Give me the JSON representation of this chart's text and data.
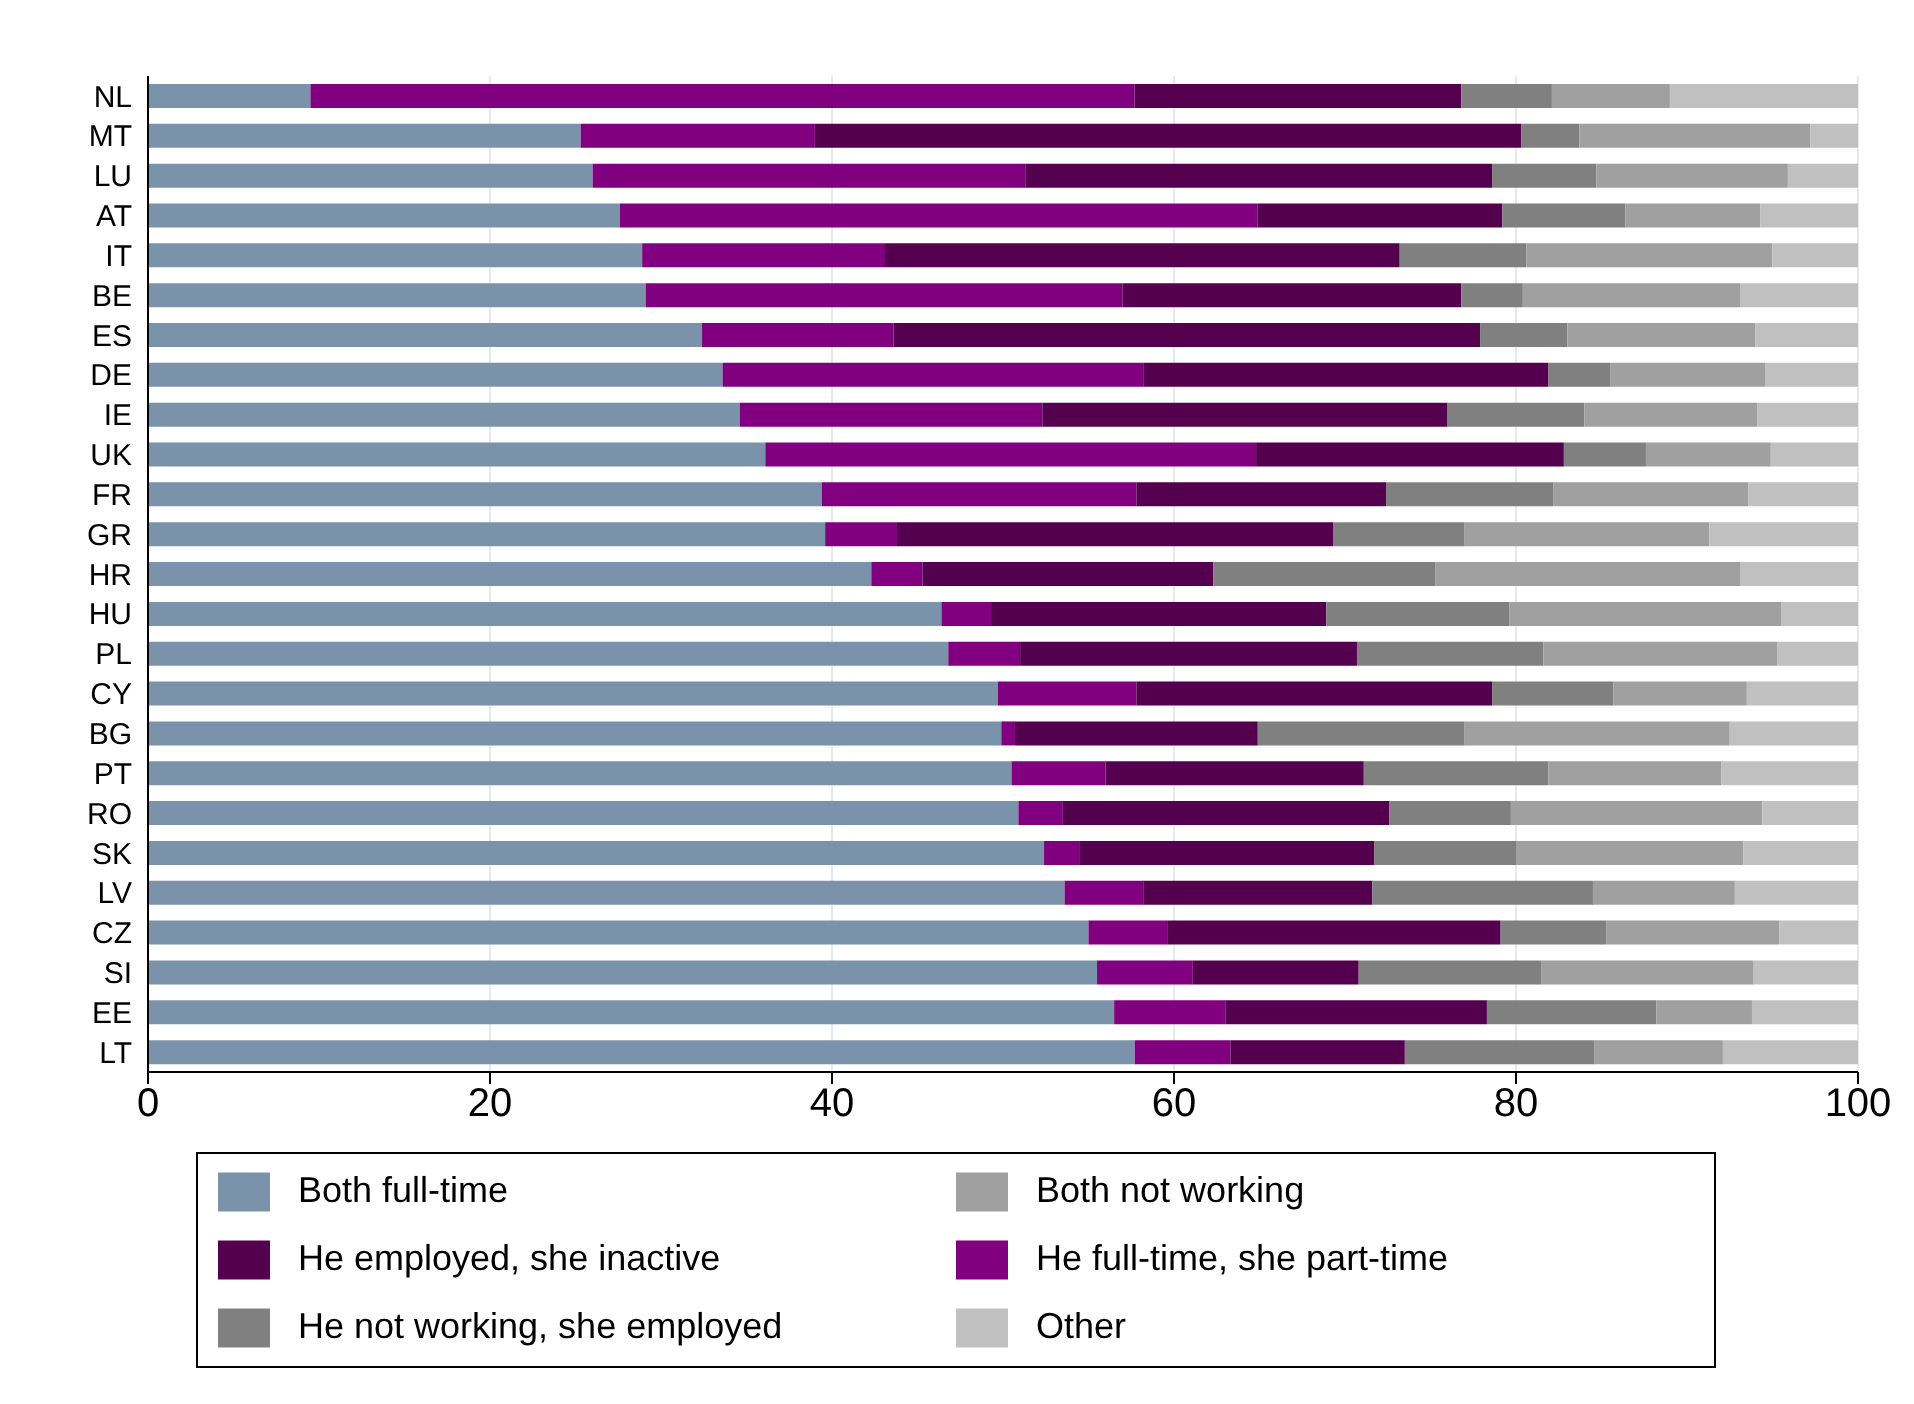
{
  "chart_data": {
    "type": "bar",
    "orientation": "horizontal",
    "stacked": true,
    "categories": [
      "NL",
      "MT",
      "LU",
      "AT",
      "IT",
      "BE",
      "ES",
      "DE",
      "IE",
      "UK",
      "FR",
      "GR",
      "HR",
      "HU",
      "PL",
      "CY",
      "BG",
      "PT",
      "RO",
      "SK",
      "LV",
      "CZ",
      "SI",
      "EE",
      "LT"
    ],
    "series": [
      {
        "name": "Both full-time",
        "color": "#7b93aa",
        "values": [
          9.5,
          25.3,
          26.0,
          27.6,
          28.9,
          29.1,
          32.4,
          33.6,
          34.6,
          36.1,
          39.4,
          39.6,
          42.3,
          46.4,
          46.8,
          49.7,
          49.9,
          50.5,
          50.9,
          52.4,
          53.6,
          55.0,
          55.5,
          56.5,
          57.7
        ]
      },
      {
        "name": "He full-time, she part-time",
        "color": "#800080",
        "values": [
          48.2,
          13.7,
          25.3,
          37.3,
          14.2,
          27.9,
          11.2,
          24.6,
          17.7,
          28.7,
          18.4,
          4.2,
          3.0,
          2.9,
          4.2,
          8.1,
          0.8,
          5.5,
          2.6,
          2.1,
          4.6,
          4.6,
          5.6,
          6.5,
          5.6
        ]
      },
      {
        "name": "He employed, she inactive",
        "color": "#55004f",
        "values": [
          19.1,
          41.3,
          27.3,
          14.3,
          30.1,
          19.8,
          34.3,
          23.7,
          23.7,
          18.0,
          14.6,
          25.5,
          17.0,
          19.6,
          19.7,
          20.8,
          14.2,
          15.1,
          19.1,
          17.2,
          13.4,
          19.5,
          9.7,
          15.3,
          10.2
        ]
      },
      {
        "name": "He not working, she employed",
        "color": "#808080",
        "values": [
          5.3,
          3.4,
          6.1,
          7.2,
          7.4,
          3.6,
          5.1,
          3.6,
          8.0,
          4.8,
          9.8,
          7.7,
          13.0,
          10.7,
          10.9,
          7.1,
          12.1,
          10.8,
          7.1,
          8.3,
          12.9,
          6.2,
          10.7,
          9.9,
          11.1
        ]
      },
      {
        "name": "Both not working",
        "color": "#a0a0a0",
        "values": [
          6.9,
          13.5,
          11.2,
          7.9,
          14.4,
          12.7,
          11.0,
          9.1,
          10.1,
          7.3,
          11.4,
          14.3,
          17.8,
          15.9,
          13.7,
          7.8,
          15.5,
          10.1,
          14.7,
          13.3,
          8.3,
          10.1,
          12.4,
          5.6,
          7.5
        ]
      },
      {
        "name": "Other",
        "color": "#c0c0c0",
        "values": [
          11.0,
          2.8,
          4.1,
          5.7,
          5.0,
          6.9,
          6.0,
          5.4,
          5.9,
          5.1,
          6.4,
          8.7,
          6.9,
          4.5,
          4.7,
          6.5,
          7.5,
          8.0,
          5.6,
          6.7,
          7.2,
          4.6,
          6.1,
          6.2,
          7.9
        ]
      }
    ],
    "xlim": [
      0,
      100
    ],
    "xticks": [
      0,
      20,
      40,
      60,
      80,
      100
    ],
    "grid": "x",
    "legend": "bottom"
  }
}
